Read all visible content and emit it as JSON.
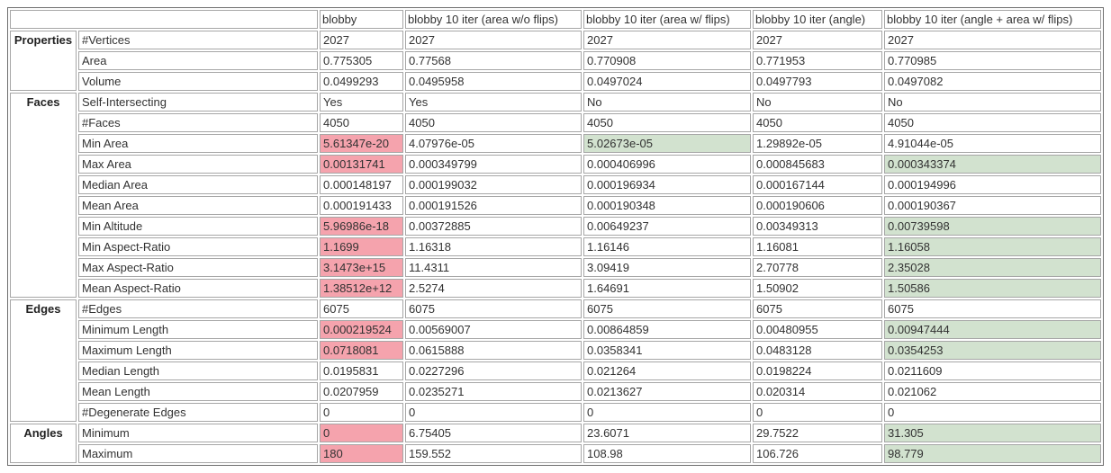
{
  "chart_data": {
    "type": "table",
    "column_headers": [
      "blobby",
      "blobby 10 iter (area w/o flips)",
      "blobby 10 iter (area w/ flips)",
      "blobby 10 iter (angle)",
      "blobby 10 iter (angle + area w/ flips)"
    ],
    "highlight_colors": {
      "worst": "#f5a3ad",
      "best": "#d2e2cf"
    },
    "groups": [
      {
        "name": "Properties",
        "rows": [
          {
            "label": "#Vertices",
            "values": [
              "2027",
              "2027",
              "2027",
              "2027",
              "2027"
            ]
          },
          {
            "label": "Area",
            "values": [
              "0.775305",
              "0.77568",
              "0.770908",
              "0.771953",
              "0.770985"
            ]
          },
          {
            "label": "Volume",
            "values": [
              "0.0499293",
              "0.0495958",
              "0.0497024",
              "0.0497793",
              "0.0497082"
            ]
          }
        ]
      },
      {
        "name": "Faces",
        "rows": [
          {
            "label": "Self-Intersecting",
            "values": [
              "Yes",
              "Yes",
              "No",
              "No",
              "No"
            ]
          },
          {
            "label": "#Faces",
            "values": [
              "4050",
              "4050",
              "4050",
              "4050",
              "4050"
            ]
          },
          {
            "label": "Min Area",
            "values": [
              "5.61347e-20",
              "4.07976e-05",
              "5.02673e-05",
              "1.29892e-05",
              "4.91044e-05"
            ],
            "hl": [
              "worst",
              "",
              "best",
              "",
              ""
            ]
          },
          {
            "label": "Max Area",
            "values": [
              "0.00131741",
              "0.000349799",
              "0.000406996",
              "0.000845683",
              "0.000343374"
            ],
            "hl": [
              "worst",
              "",
              "",
              "",
              "best"
            ]
          },
          {
            "label": "Median Area",
            "values": [
              "0.000148197",
              "0.000199032",
              "0.000196934",
              "0.000167144",
              "0.000194996"
            ]
          },
          {
            "label": "Mean Area",
            "values": [
              "0.000191433",
              "0.000191526",
              "0.000190348",
              "0.000190606",
              "0.000190367"
            ]
          },
          {
            "label": "Min Altitude",
            "values": [
              "5.96986e-18",
              "0.00372885",
              "0.00649237",
              "0.00349313",
              "0.00739598"
            ],
            "hl": [
              "worst",
              "",
              "",
              "",
              "best"
            ]
          },
          {
            "label": "Min Aspect-Ratio",
            "values": [
              "1.1699",
              "1.16318",
              "1.16146",
              "1.16081",
              "1.16058"
            ],
            "hl": [
              "worst",
              "",
              "",
              "",
              "best"
            ]
          },
          {
            "label": "Max Aspect-Ratio",
            "values": [
              "3.1473e+15",
              "11.4311",
              "3.09419",
              "2.70778",
              "2.35028"
            ],
            "hl": [
              "worst",
              "",
              "",
              "",
              "best"
            ]
          },
          {
            "label": "Mean Aspect-Ratio",
            "values": [
              "1.38512e+12",
              "2.5274",
              "1.64691",
              "1.50902",
              "1.50586"
            ],
            "hl": [
              "worst",
              "",
              "",
              "",
              "best"
            ]
          }
        ]
      },
      {
        "name": "Edges",
        "rows": [
          {
            "label": "#Edges",
            "values": [
              "6075",
              "6075",
              "6075",
              "6075",
              "6075"
            ]
          },
          {
            "label": "Minimum Length",
            "values": [
              "0.000219524",
              "0.00569007",
              "0.00864859",
              "0.00480955",
              "0.00947444"
            ],
            "hl": [
              "worst",
              "",
              "",
              "",
              "best"
            ]
          },
          {
            "label": "Maximum Length",
            "values": [
              "0.0718081",
              "0.0615888",
              "0.0358341",
              "0.0483128",
              "0.0354253"
            ],
            "hl": [
              "worst",
              "",
              "",
              "",
              "best"
            ]
          },
          {
            "label": "Median Length",
            "values": [
              "0.0195831",
              "0.0227296",
              "0.021264",
              "0.0198224",
              "0.0211609"
            ]
          },
          {
            "label": "Mean Length",
            "values": [
              "0.0207959",
              "0.0235271",
              "0.0213627",
              "0.020314",
              "0.021062"
            ]
          },
          {
            "label": "#Degenerate Edges",
            "values": [
              "0",
              "0",
              "0",
              "0",
              "0"
            ]
          }
        ]
      },
      {
        "name": "Angles",
        "rows": [
          {
            "label": "Minimum",
            "values": [
              "0",
              "6.75405",
              "23.6071",
              "29.7522",
              "31.305"
            ],
            "hl": [
              "worst",
              "",
              "",
              "",
              "best"
            ]
          },
          {
            "label": "Maximum",
            "values": [
              "180",
              "159.552",
              "108.98",
              "106.726",
              "98.779"
            ],
            "hl": [
              "worst",
              "",
              "",
              "",
              "best"
            ]
          }
        ]
      }
    ]
  }
}
